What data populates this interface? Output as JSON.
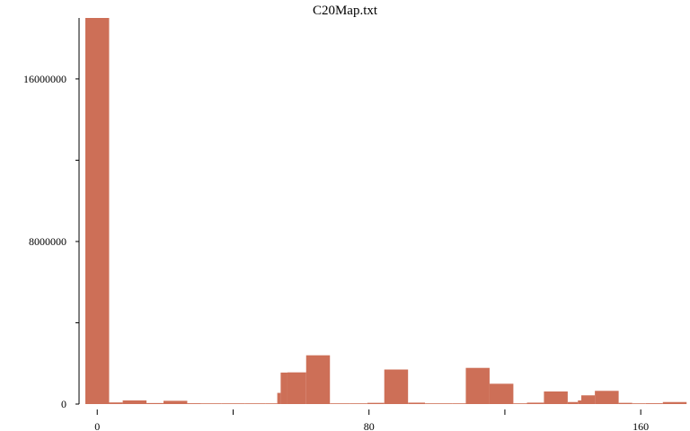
{
  "chart_data": {
    "type": "bar",
    "title": "C20Map.txt",
    "xlabel": "",
    "ylabel": "",
    "xlim": [
      -3.5,
      174.5
    ],
    "ylim": [
      0,
      19000000
    ],
    "x_ticks": [
      0,
      40,
      80,
      120,
      160
    ],
    "x_tick_labels": [
      "0",
      "",
      "80",
      "",
      "160"
    ],
    "y_ticks": [
      0,
      4000000,
      8000000,
      12000000,
      16000000
    ],
    "y_tick_labels": [
      "0",
      "",
      "8000000",
      "",
      "16000000"
    ],
    "bar_color": "#cd6f57",
    "bars": [
      {
        "x0": -3.5,
        "x1": 3.5,
        "value": 19000000
      },
      {
        "x0": 3.5,
        "x1": 7.5,
        "value": 80000
      },
      {
        "x0": 7.5,
        "x1": 14.5,
        "value": 180000
      },
      {
        "x0": 14.5,
        "x1": 19.5,
        "value": 50000
      },
      {
        "x0": 19.5,
        "x1": 26.5,
        "value": 160000
      },
      {
        "x0": 26.5,
        "x1": 30.5,
        "value": 40000
      },
      {
        "x0": 30.5,
        "x1": 36.5,
        "value": 20000
      },
      {
        "x0": 36.5,
        "x1": 43.5,
        "value": 20000
      },
      {
        "x0": 43.5,
        "x1": 49.5,
        "value": 20000
      },
      {
        "x0": 49.5,
        "x1": 53,
        "value": 10000
      },
      {
        "x0": 53,
        "x1": 54,
        "value": 550000
      },
      {
        "x0": 54,
        "x1": 56,
        "value": 1550000
      },
      {
        "x0": 56,
        "x1": 61.5,
        "value": 1560000
      },
      {
        "x0": 61.5,
        "x1": 68.5,
        "value": 2400000
      },
      {
        "x0": 68.5,
        "x1": 74.5,
        "value": 30000
      },
      {
        "x0": 74.5,
        "x1": 79.5,
        "value": 20000
      },
      {
        "x0": 79.5,
        "x1": 84.5,
        "value": 60000
      },
      {
        "x0": 84.5,
        "x1": 91.5,
        "value": 1700000
      },
      {
        "x0": 91.5,
        "x1": 96.5,
        "value": 70000
      },
      {
        "x0": 96.5,
        "x1": 104.5,
        "value": 30000
      },
      {
        "x0": 104.5,
        "x1": 108.5,
        "value": 20000
      },
      {
        "x0": 108.5,
        "x1": 115.5,
        "value": 1780000
      },
      {
        "x0": 115.5,
        "x1": 122.5,
        "value": 1000000
      },
      {
        "x0": 122.5,
        "x1": 126.5,
        "value": 30000
      },
      {
        "x0": 126.5,
        "x1": 131.5,
        "value": 70000
      },
      {
        "x0": 131.5,
        "x1": 138.5,
        "value": 620000
      },
      {
        "x0": 138.5,
        "x1": 141.5,
        "value": 100000
      },
      {
        "x0": 141.5,
        "x1": 142.5,
        "value": 180000
      },
      {
        "x0": 142.5,
        "x1": 146.5,
        "value": 430000
      },
      {
        "x0": 146.5,
        "x1": 153.5,
        "value": 650000
      },
      {
        "x0": 153.5,
        "x1": 157.5,
        "value": 60000
      },
      {
        "x0": 157.5,
        "x1": 161.5,
        "value": 20000
      },
      {
        "x0": 161.5,
        "x1": 166.5,
        "value": 40000
      },
      {
        "x0": 166.5,
        "x1": 173.5,
        "value": 100000
      }
    ]
  }
}
